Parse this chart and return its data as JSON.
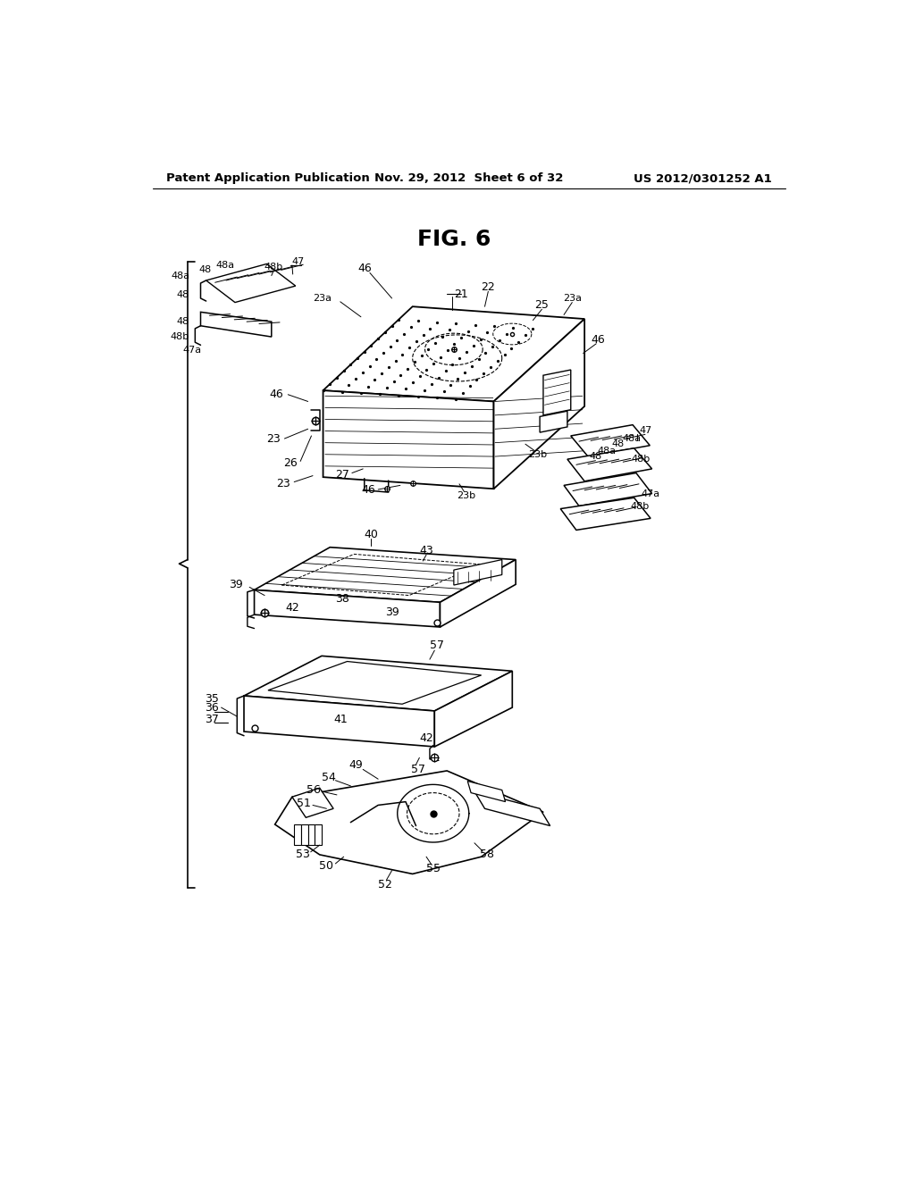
{
  "background_color": "#ffffff",
  "header_left": "Patent Application Publication",
  "header_center": "Nov. 29, 2012  Sheet 6 of 32",
  "header_right": "US 2012/0301252 A1",
  "figure_title": "FIG. 6",
  "line_color": "#000000",
  "gray": "#888888"
}
